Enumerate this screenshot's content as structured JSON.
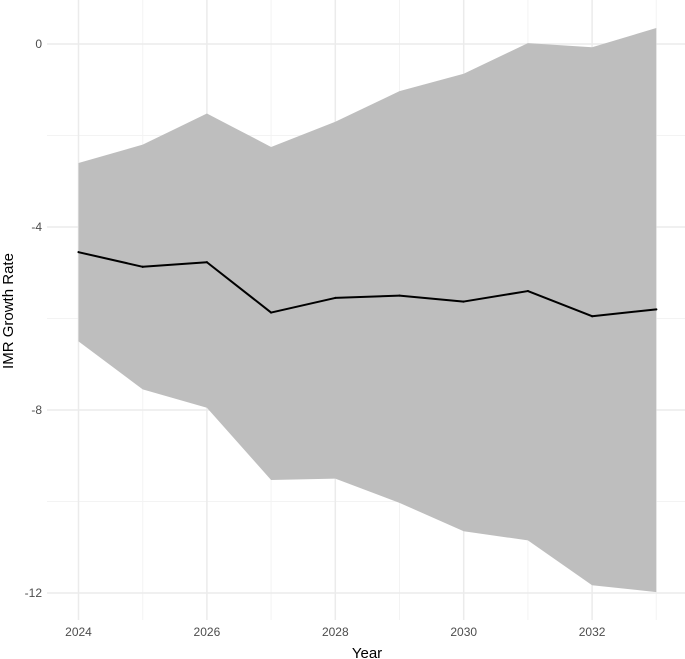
{
  "chart_data": {
    "type": "line",
    "title": "",
    "xlabel": "Year",
    "ylabel": "IMR Growth Rate",
    "xlim": [
      2023.6,
      2033.4
    ],
    "ylim": [
      -12.5,
      0.6
    ],
    "x_ticks": [
      2024,
      2026,
      2028,
      2030,
      2032
    ],
    "y_ticks": [
      0,
      -4,
      -8,
      -12
    ],
    "x_tick_labels": [
      "2024",
      "2026",
      "2028",
      "2030",
      "2032"
    ],
    "y_tick_labels": [
      "0",
      "-4",
      "-8",
      "-12"
    ],
    "grid": true,
    "legend": "none",
    "series": [
      {
        "name": "IMR growth rate",
        "x": [
          2024,
          2025,
          2026,
          2027,
          2028,
          2029,
          2030,
          2031,
          2032,
          2033
        ],
        "y": [
          -4.55,
          -4.87,
          -4.77,
          -5.87,
          -5.55,
          -5.5,
          -5.63,
          -5.4,
          -5.95,
          -5.8
        ],
        "lower": [
          -6.5,
          -7.55,
          -7.95,
          -9.53,
          -9.5,
          -10.03,
          -10.65,
          -10.85,
          -11.83,
          -11.98
        ],
        "upper": [
          -2.6,
          -2.2,
          -1.52,
          -2.25,
          -1.7,
          -1.03,
          -0.65,
          0.02,
          -0.07,
          0.35
        ]
      }
    ],
    "colors": {
      "band": "#bebebe",
      "line": "#000000",
      "grid_major": "#ebebeb",
      "grid_minor": "#f3f3f3"
    }
  }
}
